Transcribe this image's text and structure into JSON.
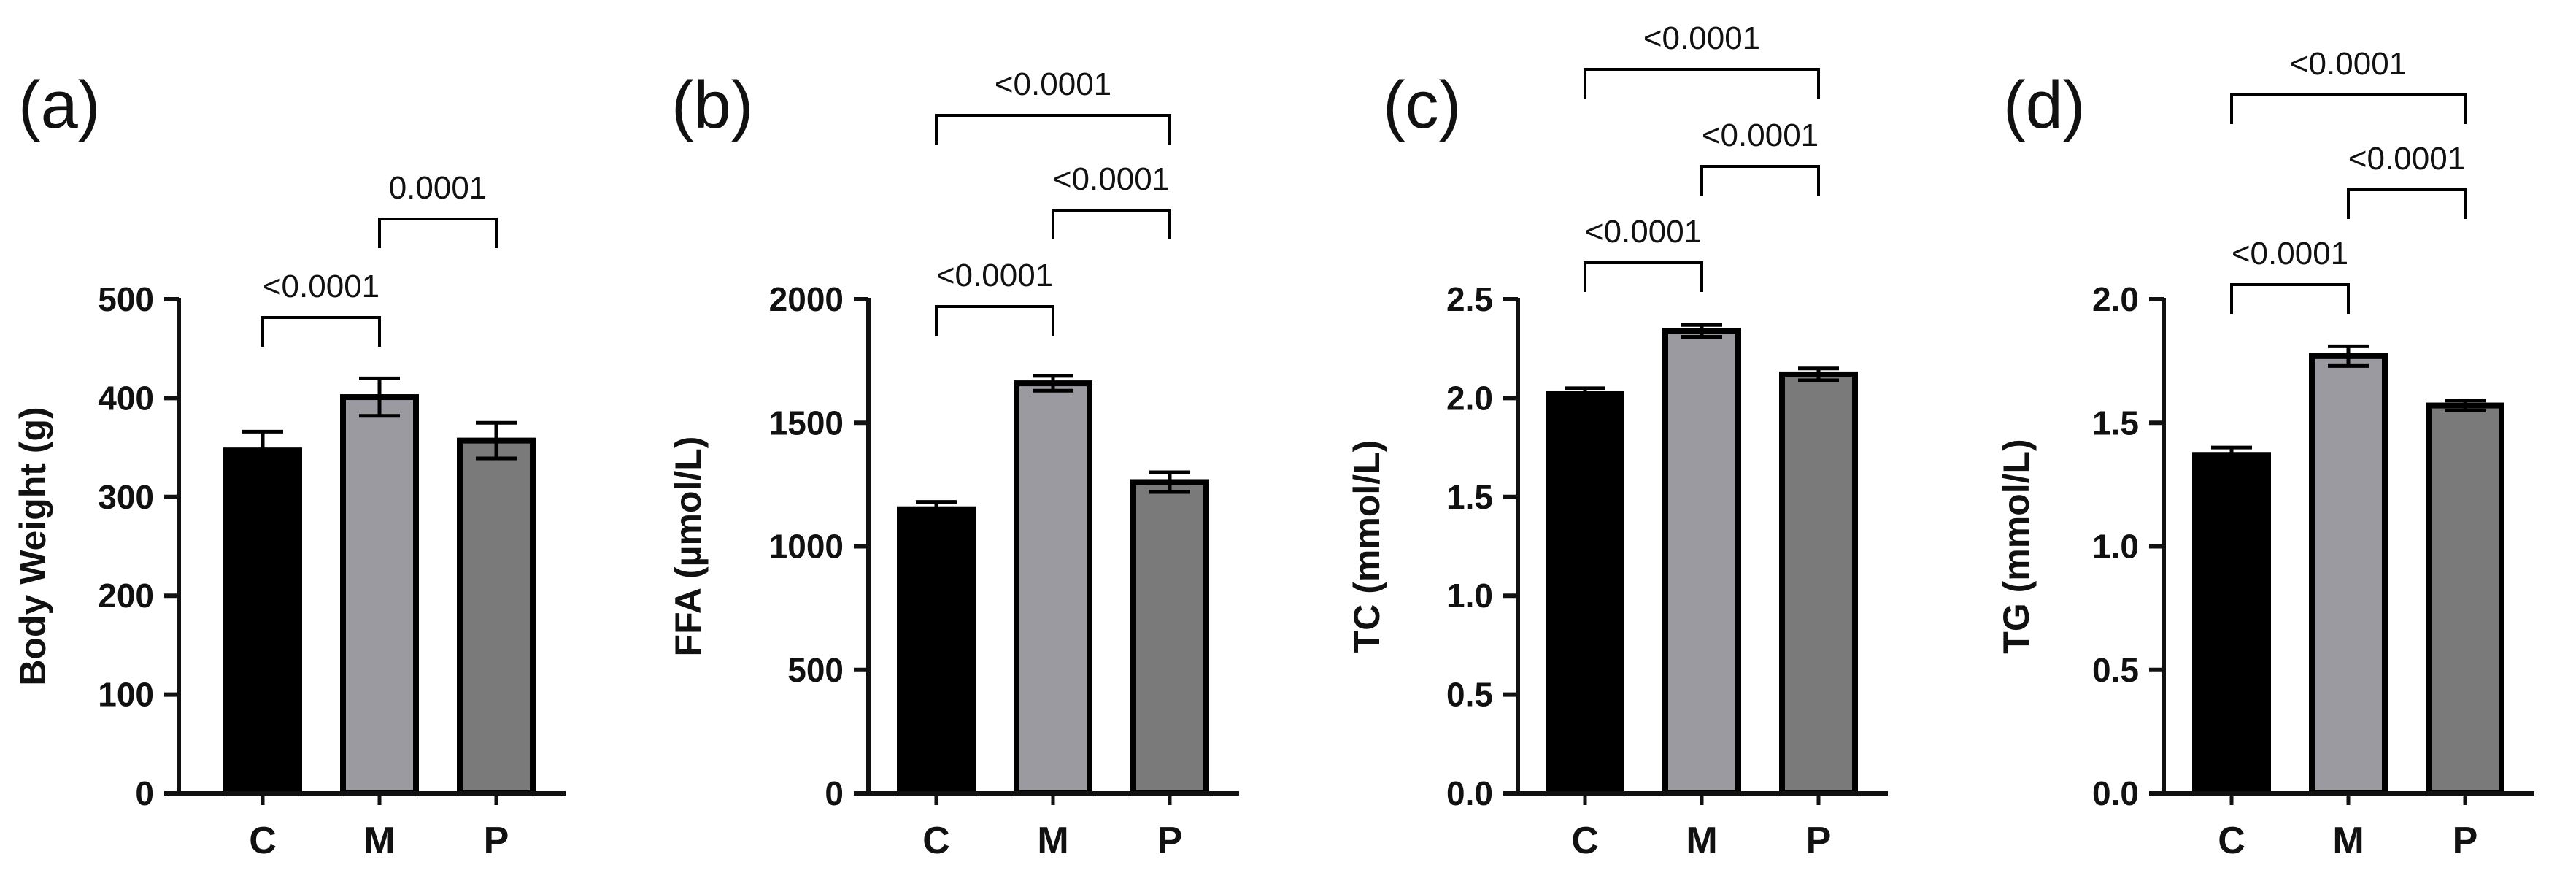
{
  "figure": {
    "panels": [
      "(a)",
      "(b)",
      "(c)",
      "(d)"
    ]
  },
  "colors": {
    "C": "#000000",
    "M": "#9a9aa0",
    "P": "#7a7a7a",
    "axis": "#111111"
  },
  "chart_data": [
    {
      "panel": "(a)",
      "type": "bar",
      "categories": [
        "C",
        "M",
        "P"
      ],
      "values": [
        347,
        401,
        357
      ],
      "errors": [
        19,
        19,
        18
      ],
      "ylabel": "Body Weight (g)",
      "ylim": [
        0,
        500
      ],
      "yticks": [
        0,
        100,
        200,
        300,
        400,
        500
      ],
      "ytick_labels": [
        "0",
        "100",
        "200",
        "300",
        "400",
        "500"
      ],
      "comparisons": [
        {
          "from": "C",
          "to": "M",
          "label": "<0.0001"
        },
        {
          "from": "M",
          "to": "P",
          "label": "0.0001"
        }
      ]
    },
    {
      "panel": "(b)",
      "type": "bar",
      "categories": [
        "C",
        "M",
        "P"
      ],
      "values": [
        1150,
        1660,
        1260
      ],
      "errors": [
        30,
        30,
        40
      ],
      "ylabel": "FFA (µmol/L)",
      "ylim": [
        0,
        2000
      ],
      "yticks": [
        0,
        500,
        1000,
        1500,
        2000
      ],
      "ytick_labels": [
        "0",
        "500",
        "1000",
        "1500",
        "2000"
      ],
      "comparisons": [
        {
          "from": "C",
          "to": "M",
          "label": "<0.0001"
        },
        {
          "from": "M",
          "to": "P",
          "label": "<0.0001"
        },
        {
          "from": "C",
          "to": "P",
          "label": "<0.0001"
        }
      ]
    },
    {
      "panel": "(c)",
      "type": "bar",
      "categories": [
        "C",
        "M",
        "P"
      ],
      "values": [
        2.02,
        2.34,
        2.12
      ],
      "errors": [
        0.03,
        0.03,
        0.03
      ],
      "ylabel": "TC (mmol/L)",
      "ylim": [
        0,
        2.5
      ],
      "yticks": [
        0,
        0.5,
        1.0,
        1.5,
        2.0,
        2.5
      ],
      "ytick_labels": [
        "0.0",
        "0.5",
        "1.0",
        "1.5",
        "2.0",
        "2.5"
      ],
      "comparisons": [
        {
          "from": "C",
          "to": "M",
          "label": "<0.0001"
        },
        {
          "from": "M",
          "to": "P",
          "label": "<0.0001"
        },
        {
          "from": "C",
          "to": "P",
          "label": "<0.0001"
        }
      ]
    },
    {
      "panel": "(d)",
      "type": "bar",
      "categories": [
        "C",
        "M",
        "P"
      ],
      "values": [
        1.37,
        1.77,
        1.57
      ],
      "errors": [
        0.03,
        0.04,
        0.02
      ],
      "ylabel": "TG (mmol/L)",
      "ylim": [
        0,
        2.0
      ],
      "yticks": [
        0,
        0.5,
        1.0,
        1.5,
        2.0
      ],
      "ytick_labels": [
        "0.0",
        "0.5",
        "1.0",
        "1.5",
        "2.0"
      ],
      "comparisons": [
        {
          "from": "C",
          "to": "M",
          "label": "<0.0001"
        },
        {
          "from": "M",
          "to": "P",
          "label": "<0.0001"
        },
        {
          "from": "C",
          "to": "P",
          "label": "<0.0001"
        }
      ]
    }
  ]
}
